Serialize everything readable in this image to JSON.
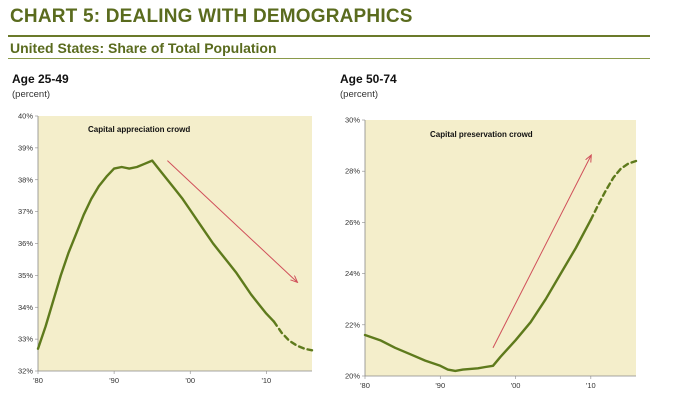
{
  "header": {
    "title": "CHART 5: DEALING WITH DEMOGRAPHICS",
    "subtitle": "United States: Share of Total Population"
  },
  "colors": {
    "brand": "#5a6b1e",
    "line": "#5e7a1c",
    "plot_bg": "#f4eecb",
    "arrow": "#d0505a"
  },
  "chart_data": [
    {
      "type": "line",
      "title": "Age 25-49",
      "ylabel": "(percent)",
      "annotation": "Capital appreciation crowd",
      "xlim": [
        1980,
        2016
      ],
      "ylim": [
        32,
        40
      ],
      "x_ticks": [
        1980,
        1990,
        2000,
        2010
      ],
      "x_tick_labels": [
        "'80",
        "'90",
        "'00",
        "'10"
      ],
      "y_ticks": [
        32,
        33,
        34,
        35,
        36,
        37,
        38,
        39,
        40
      ],
      "y_tick_labels": [
        "32%",
        "33%",
        "34%",
        "35%",
        "36%",
        "37%",
        "38%",
        "39%",
        "40%"
      ],
      "grid": false,
      "series": [
        {
          "style": "actual",
          "x": [
            1980,
            1981,
            1982,
            1983,
            1984,
            1985,
            1986,
            1987,
            1988,
            1989,
            1990,
            1991,
            1992,
            1993,
            1994,
            1995,
            1996,
            1997,
            1998,
            1999,
            2000,
            2001,
            2002,
            2003,
            2004,
            2005,
            2006,
            2007,
            2008,
            2009,
            2010,
            2011
          ],
          "y": [
            32.7,
            33.4,
            34.2,
            35.0,
            35.7,
            36.3,
            36.9,
            37.4,
            37.8,
            38.1,
            38.35,
            38.4,
            38.35,
            38.4,
            38.5,
            38.6,
            38.3,
            38.0,
            37.7,
            37.4,
            37.05,
            36.7,
            36.35,
            36.0,
            35.7,
            35.4,
            35.1,
            34.75,
            34.4,
            34.1,
            33.8,
            33.55
          ]
        },
        {
          "style": "projected",
          "x": [
            2011,
            2012,
            2013,
            2014,
            2015,
            2016
          ],
          "y": [
            33.55,
            33.2,
            32.95,
            32.8,
            32.7,
            32.65
          ]
        }
      ],
      "arrow": {
        "from": [
          1997,
          38.6
        ],
        "to": [
          2014,
          34.8
        ]
      }
    },
    {
      "type": "line",
      "title": "Age 50-74",
      "ylabel": "(percent)",
      "annotation": "Capital preservation crowd",
      "xlim": [
        1980,
        2016
      ],
      "ylim": [
        20,
        30
      ],
      "x_ticks": [
        1980,
        1990,
        2000,
        2010
      ],
      "x_tick_labels": [
        "'80",
        "'90",
        "'00",
        "'10"
      ],
      "y_ticks": [
        20,
        22,
        24,
        26,
        28,
        30
      ],
      "y_tick_labels": [
        "20%",
        "22%",
        "24%",
        "26%",
        "28%",
        "30%"
      ],
      "grid": false,
      "series": [
        {
          "style": "actual",
          "x": [
            1980,
            1982,
            1984,
            1986,
            1988,
            1990,
            1991,
            1992,
            1993,
            1995,
            1996,
            1997,
            1998,
            2000,
            2002,
            2004,
            2006,
            2008,
            2010
          ],
          "y": [
            21.6,
            21.4,
            21.1,
            20.85,
            20.6,
            20.4,
            20.25,
            20.2,
            20.25,
            20.3,
            20.35,
            20.4,
            20.75,
            21.4,
            22.1,
            23.0,
            24.0,
            25.0,
            26.1
          ]
        },
        {
          "style": "projected",
          "x": [
            2010,
            2011,
            2012,
            2013,
            2014,
            2015,
            2016
          ],
          "y": [
            26.1,
            26.7,
            27.25,
            27.75,
            28.1,
            28.3,
            28.4
          ]
        }
      ],
      "arrow": {
        "from": [
          1997,
          21.1
        ],
        "to": [
          2010,
          28.6
        ]
      }
    }
  ]
}
